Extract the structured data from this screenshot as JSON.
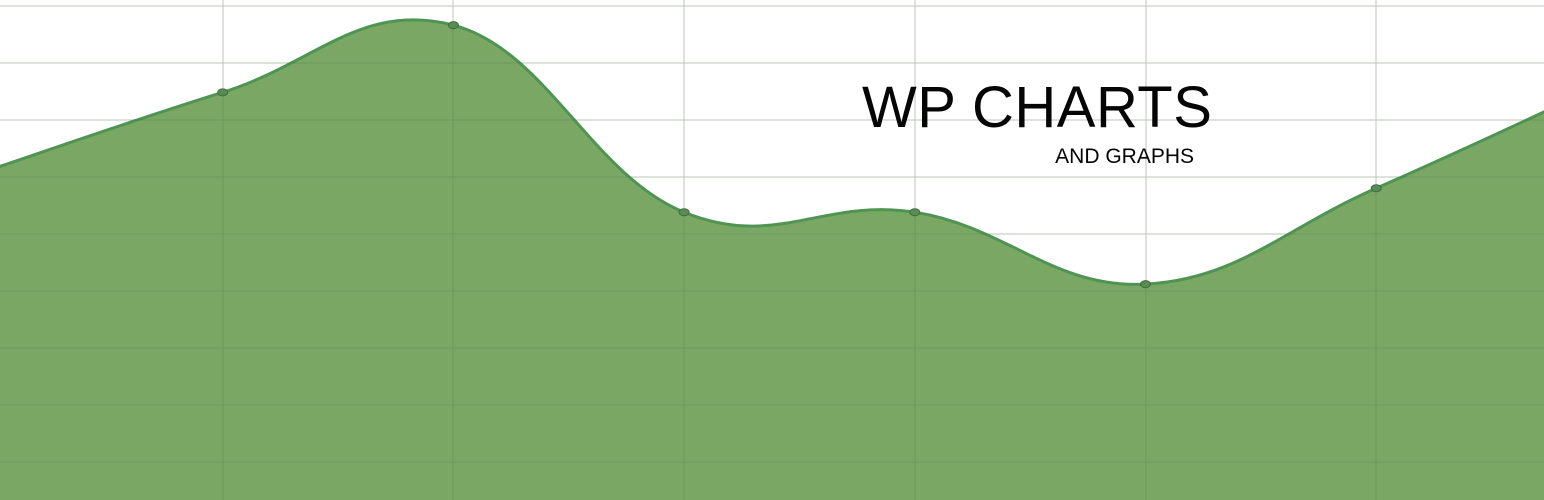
{
  "banner": {
    "title": "WP CHARTS",
    "subtitle": "AND GRAPHS"
  },
  "colors": {
    "background": "#ffffff",
    "area_fill": "#6fa157",
    "area_line": "#4f9453",
    "grid": "#dcdcdc",
    "point": "#5a8a55",
    "text": "#050505"
  },
  "chart_data": {
    "type": "area",
    "smooth": true,
    "grid": true,
    "x": [
      0,
      1,
      2,
      3,
      4,
      5,
      6,
      7
    ],
    "values": [
      55,
      71,
      85,
      46,
      46,
      31,
      51,
      73
    ],
    "ylim": [
      -14,
      89
    ]
  }
}
